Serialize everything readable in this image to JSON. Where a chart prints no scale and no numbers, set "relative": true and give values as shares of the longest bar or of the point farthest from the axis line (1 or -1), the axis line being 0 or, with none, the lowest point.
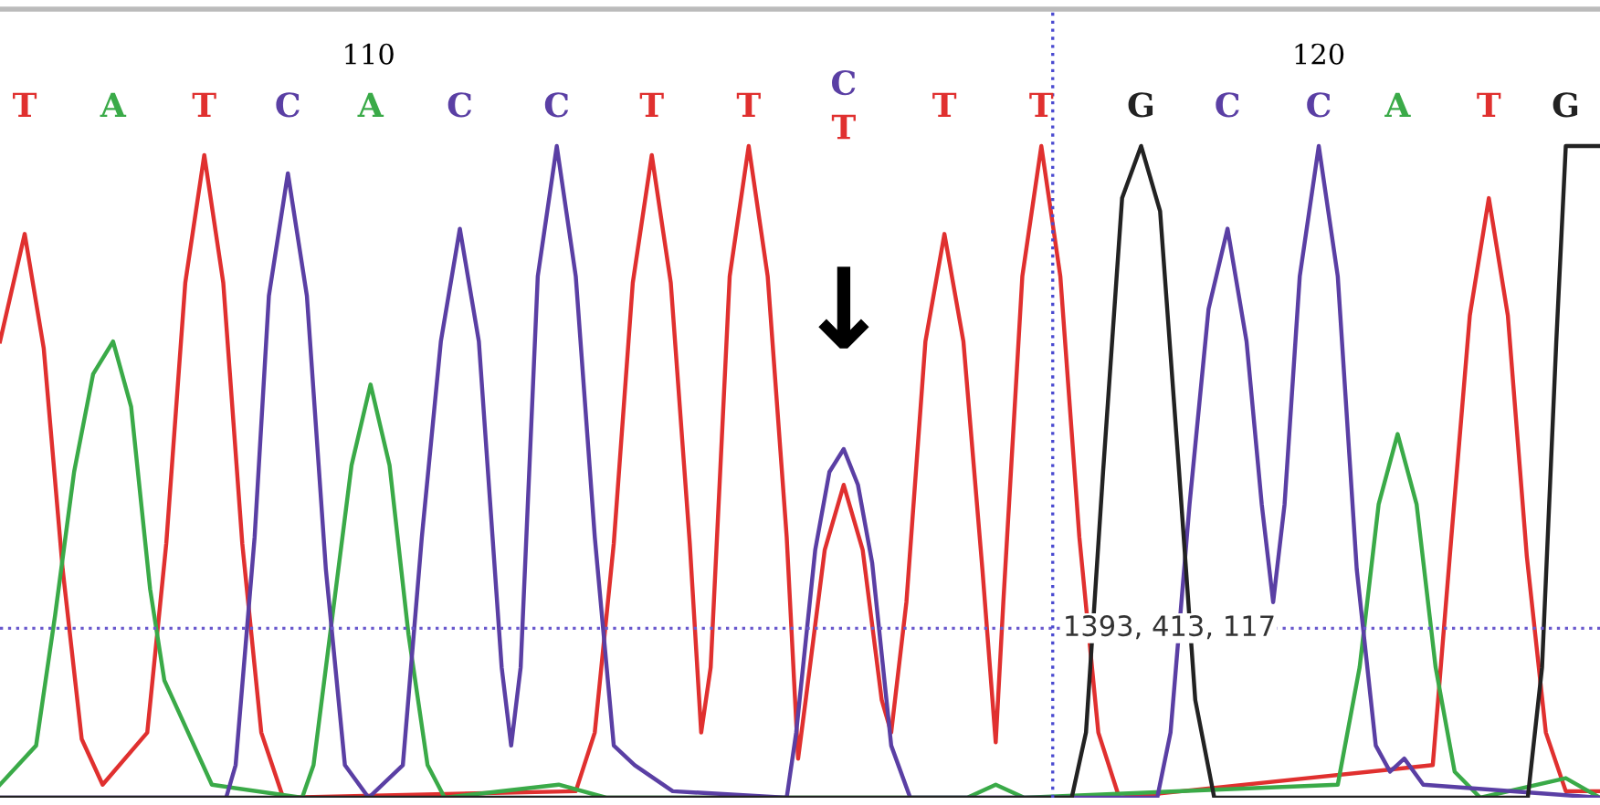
{
  "chart_data": {
    "type": "line",
    "relative": true,
    "xlim": [
      106.12,
      122.96
    ],
    "xticks": [
      110,
      120
    ],
    "grid": false,
    "legend": false,
    "marker": "none",
    "line_style": "solid",
    "series": [
      {
        "color": "#e0302f",
        "x": [
          106.12,
          106.38,
          106.58,
          106.78,
          106.98,
          107.2,
          107.67,
          107.87,
          108.07,
          108.27,
          108.47,
          108.67,
          108.87,
          109.1,
          112.18,
          112.38,
          112.58,
          112.78,
          112.98,
          113.18,
          113.38,
          113.5,
          113.6,
          113.8,
          114.0,
          114.2,
          114.4,
          114.52,
          114.6,
          114.8,
          115.0,
          115.2,
          115.4,
          115.5,
          115.66,
          115.86,
          116.06,
          116.26,
          116.46,
          116.6,
          116.68,
          116.88,
          117.08,
          117.28,
          117.48,
          117.68,
          117.9,
          121.2,
          121.39,
          121.59,
          121.79,
          121.99,
          122.19,
          122.39,
          122.6,
          122.96
        ],
        "values": [
          0.7,
          0.865,
          0.69,
          0.35,
          0.09,
          0.02,
          0.1,
          0.39,
          0.79,
          0.986,
          0.79,
          0.39,
          0.1,
          0.0,
          0.01,
          0.1,
          0.39,
          0.79,
          0.986,
          0.79,
          0.39,
          0.1,
          0.2,
          0.8,
          1.0,
          0.8,
          0.4,
          0.06,
          0.15,
          0.38,
          0.48,
          0.38,
          0.15,
          0.1,
          0.3,
          0.7,
          0.865,
          0.7,
          0.35,
          0.085,
          0.3,
          0.8,
          1.0,
          0.8,
          0.4,
          0.1,
          0.0,
          0.05,
          0.39,
          0.74,
          0.92,
          0.74,
          0.37,
          0.1,
          0.01,
          0.01
        ]
      },
      {
        "color": "#3aaa48",
        "x": [
          106.12,
          106.5,
          106.7,
          106.9,
          107.1,
          107.31,
          107.5,
          107.7,
          107.85,
          108.1,
          108.35,
          109.3,
          109.42,
          109.62,
          109.82,
          110.02,
          110.22,
          110.42,
          110.62,
          110.8,
          112.0,
          112.5,
          116.3,
          116.6,
          116.9,
          120.2,
          120.43,
          120.63,
          120.83,
          121.03,
          121.23,
          121.43,
          121.7,
          122.6,
          122.96
        ],
        "values": [
          0.02,
          0.08,
          0.28,
          0.5,
          0.65,
          0.7,
          0.6,
          0.32,
          0.18,
          0.1,
          0.02,
          0.0,
          0.05,
          0.28,
          0.51,
          0.634,
          0.51,
          0.25,
          0.05,
          0.0,
          0.02,
          0.0,
          0.0,
          0.02,
          0.0,
          0.02,
          0.2,
          0.45,
          0.558,
          0.45,
          0.2,
          0.04,
          0.0,
          0.03,
          0.0
        ]
      },
      {
        "color": "#5a3fa4",
        "x": [
          106.12,
          108.5,
          108.6,
          108.8,
          108.95,
          109.15,
          109.35,
          109.55,
          109.75,
          110.0,
          110.36,
          110.56,
          110.76,
          110.96,
          111.16,
          111.4,
          111.5,
          111.6,
          111.78,
          111.98,
          112.18,
          112.38,
          112.58,
          112.8,
          113.2,
          114.4,
          114.5,
          114.7,
          114.85,
          115.0,
          115.15,
          115.3,
          115.5,
          115.7,
          118.3,
          118.44,
          118.64,
          118.84,
          119.04,
          119.24,
          119.4,
          119.52,
          119.64,
          119.8,
          120.0,
          120.2,
          120.4,
          120.6,
          120.75,
          120.9,
          121.1,
          122.96
        ],
        "values": [
          0.0,
          0.0,
          0.05,
          0.4,
          0.77,
          0.958,
          0.77,
          0.35,
          0.05,
          0.0,
          0.05,
          0.4,
          0.7,
          0.873,
          0.7,
          0.2,
          0.08,
          0.2,
          0.8,
          1.0,
          0.8,
          0.4,
          0.08,
          0.05,
          0.01,
          0.0,
          0.1,
          0.38,
          0.5,
          0.535,
          0.48,
          0.36,
          0.08,
          0.0,
          0.0,
          0.1,
          0.45,
          0.75,
          0.873,
          0.7,
          0.45,
          0.3,
          0.45,
          0.8,
          1.0,
          0.8,
          0.35,
          0.08,
          0.04,
          0.06,
          0.02,
          0.0
        ]
      },
      {
        "color": "#222222",
        "x": [
          106.12,
          117.4,
          117.55,
          117.73,
          117.93,
          118.13,
          118.33,
          118.53,
          118.7,
          118.9,
          122.2,
          122.35,
          122.5,
          122.6,
          122.96
        ],
        "values": [
          0.0,
          0.0,
          0.1,
          0.5,
          0.92,
          1.0,
          0.9,
          0.5,
          0.15,
          0.0,
          0.0,
          0.2,
          0.7,
          1.0,
          1.0
        ]
      }
    ],
    "ref_lines": [
      {
        "axis": "y",
        "value": 0.26,
        "color": "#6a5acd",
        "line_style": "dotted"
      },
      {
        "axis": "x",
        "value": 117.2,
        "color": "#4a4ad0",
        "line_style": "dotted"
      }
    ],
    "annotations": [
      "T",
      "A",
      "T",
      "C",
      "A",
      "C",
      "C",
      "T",
      "T",
      "C",
      "T",
      "T",
      "T",
      "G",
      "C",
      "C",
      "A",
      "T",
      "G",
      {
        "text": "↓",
        "x": 115.0,
        "y": 0.535
      },
      "1393, 413, 117"
    ]
  }
}
